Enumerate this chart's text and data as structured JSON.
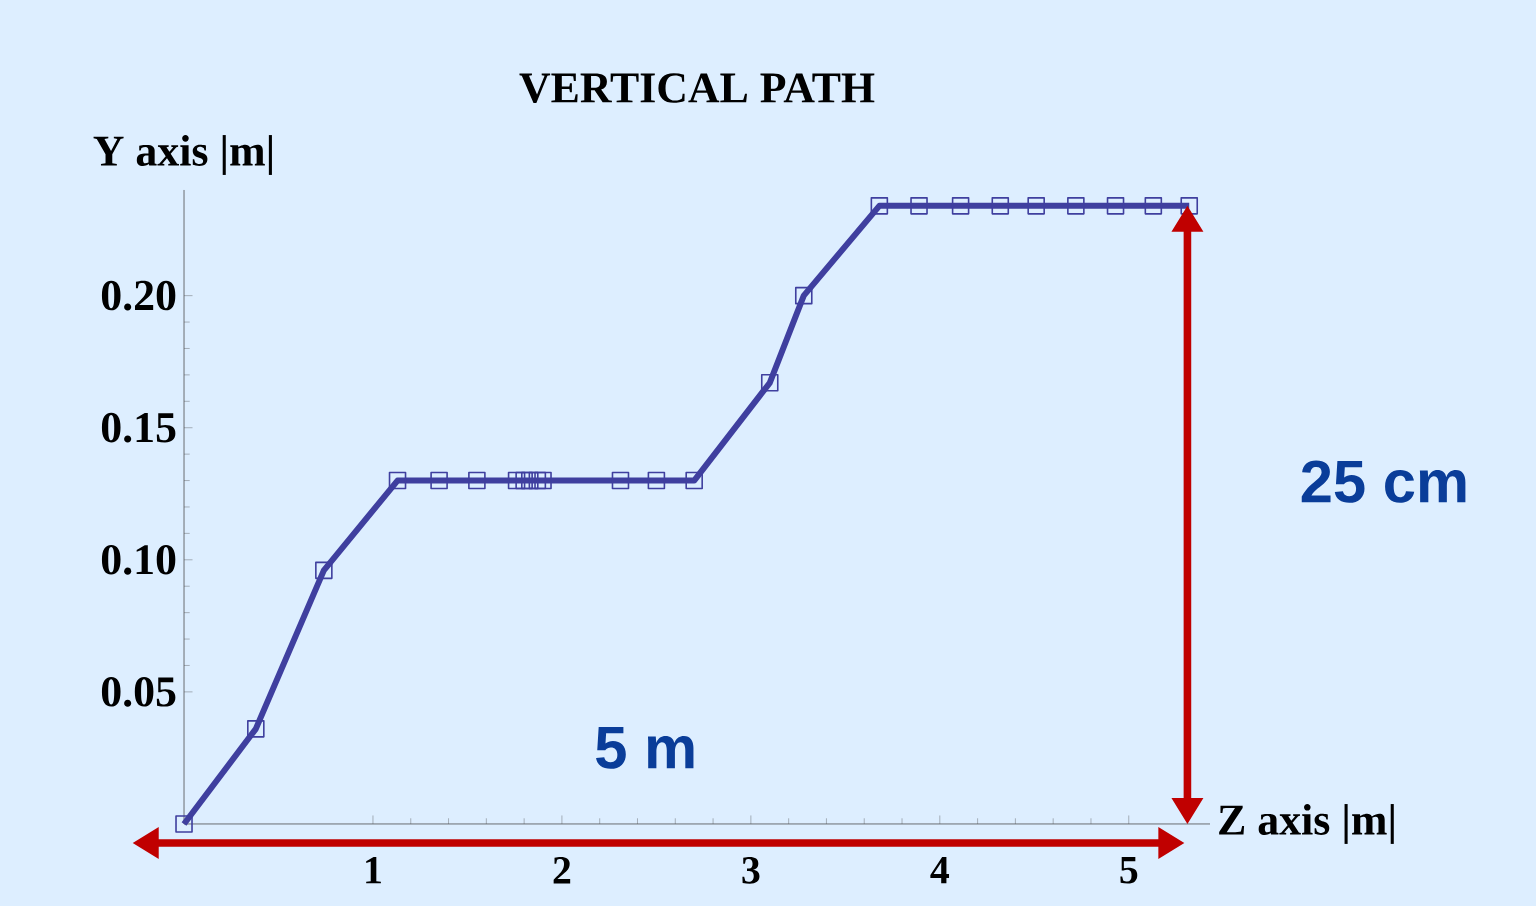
{
  "chart_data": {
    "type": "line",
    "title": "VERTICAL PATH",
    "xlabel": "Z axis |m|",
    "ylabel": "Y axis |m|",
    "x": [
      0,
      0.38,
      0.74,
      1.13,
      1.35,
      1.55,
      1.76,
      1.8,
      1.83,
      1.87,
      1.9,
      2.31,
      2.5,
      2.7,
      3.1,
      3.28,
      3.68,
      3.89,
      4.11,
      4.32,
      4.51,
      4.72,
      4.93,
      5.13,
      5.32
    ],
    "series": [
      {
        "color": "#3f3f9f",
        "values": [
          0,
          0.036,
          0.096,
          0.13,
          0.13,
          0.13,
          0.13,
          0.13,
          0.13,
          0.13,
          0.13,
          0.13,
          0.13,
          0.13,
          0.167,
          0.2,
          0.234,
          0.234,
          0.234,
          0.234,
          0.234,
          0.234,
          0.234,
          0.234,
          0.234
        ]
      }
    ],
    "xlim": [
      0,
      5.43
    ],
    "ylim": [
      0,
      0.24
    ],
    "xticks": [
      1,
      2,
      3,
      4,
      5
    ],
    "yticks": [
      0.05,
      {
        "value": 0.1,
        "label": "0.10"
      },
      0.15,
      {
        "value": 0.2,
        "label": "0.20"
      }
    ],
    "marker": "square",
    "line_style": "solid",
    "annotations": [
      "5 m",
      "25 cm"
    ]
  }
}
